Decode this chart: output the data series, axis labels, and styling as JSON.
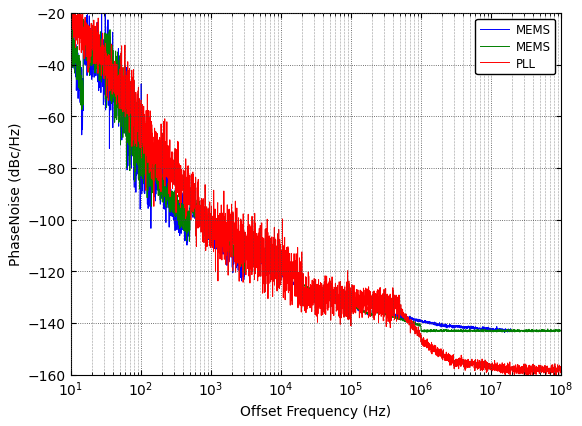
{
  "title": "",
  "xlabel": "Offset Frequency (Hz)",
  "ylabel": "PhaseNoise (dBc/Hz)",
  "xlim": [
    10,
    100000000.0
  ],
  "ylim": [
    -160,
    -20
  ],
  "yticks": [
    -160,
    -140,
    -120,
    -100,
    -80,
    -60,
    -40,
    -20
  ],
  "legend": [
    "MEMS",
    "MEMS",
    "PLL"
  ],
  "line_colors": [
    "#0000FF",
    "#008000",
    "#FF0000"
  ],
  "background_color": "#ffffff",
  "grid_color": "#444444",
  "figsize": [
    5.82,
    4.27
  ],
  "dpi": 100,
  "blue_curve": {
    "segments": [
      {
        "f_end": 10,
        "val": -25
      },
      {
        "f_end": 15,
        "slope": -30
      },
      {
        "f_end": 30,
        "slope": -45
      },
      {
        "f_end": 100,
        "slope": -40
      },
      {
        "f_end": 500,
        "slope": -30
      },
      {
        "f_end": 3000,
        "slope": -20
      },
      {
        "f_end": 30000.0,
        "slope": -12
      },
      {
        "f_end": 200000.0,
        "slope": -8
      },
      {
        "f_end": 2000000.0,
        "slope": -4
      },
      {
        "f_end": 20000000.0,
        "slope": -1
      },
      {
        "f_end": 100000000.0,
        "slope": 0
      }
    ],
    "noise_levels": [
      {
        "f_max": 30,
        "std": 6
      },
      {
        "f_max": 150,
        "std": 9
      },
      {
        "f_max": 500,
        "std": 4
      },
      {
        "f_max": 3000,
        "std": 2
      },
      {
        "f_max": 10000.0,
        "std": 1
      },
      {
        "f_max": 100000000.0,
        "std": 0.3
      }
    ],
    "floor": -143,
    "floor_start": 3000000.0
  },
  "green_curve": {
    "noise_levels": [
      {
        "f_max": 30,
        "std": 4
      },
      {
        "f_max": 150,
        "std": 7
      },
      {
        "f_max": 500,
        "std": 3
      },
      {
        "f_max": 3000,
        "std": 1.5
      },
      {
        "f_max": 10000.0,
        "std": 0.8
      },
      {
        "f_max": 100000000.0,
        "std": 0.2
      }
    ],
    "floor": -144,
    "floor_start": 500000.0
  },
  "red_curve": {
    "noise_levels": [
      {
        "f_max": 50,
        "std": 4
      },
      {
        "f_max": 300,
        "std": 6
      },
      {
        "f_max": 2000,
        "std": 5
      },
      {
        "f_max": 20000.0,
        "std": 6
      },
      {
        "f_max": 100000.0,
        "std": 4
      },
      {
        "f_max": 500000.0,
        "std": 3
      },
      {
        "f_max": 100000000.0,
        "std": 1
      }
    ],
    "flat_level": -130,
    "flat_start": 1000,
    "flat_end": 100000.0,
    "drop_start": 500000.0,
    "drop_end": 3000000.0,
    "floor": -158
  }
}
